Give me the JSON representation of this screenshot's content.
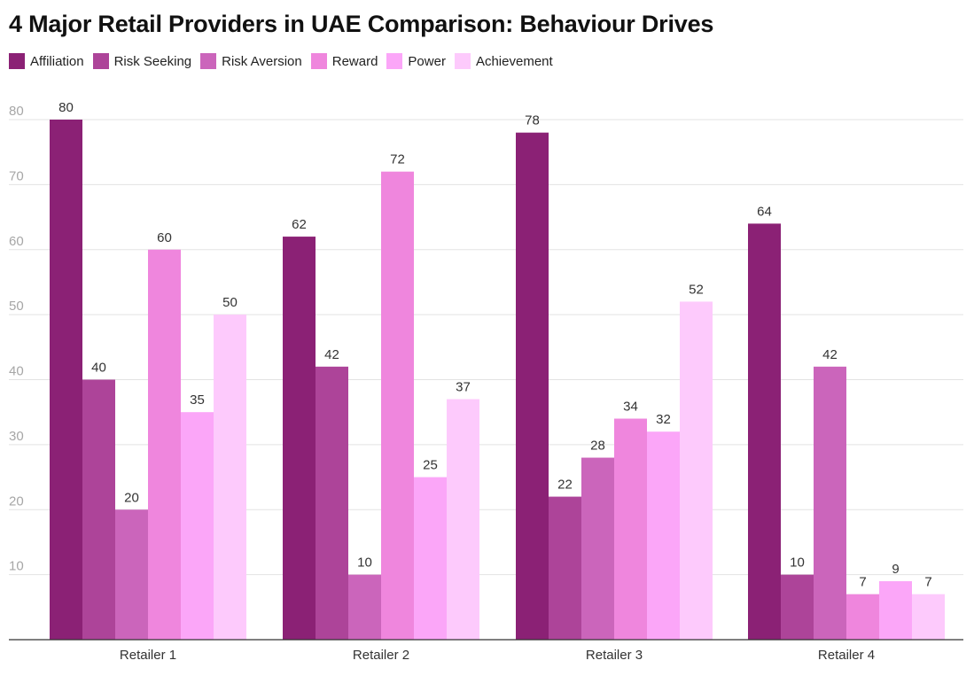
{
  "chart_data": {
    "type": "bar",
    "title": "4 Major Retail Providers in UAE Comparison: Behaviour Drives",
    "categories": [
      "Retailer 1",
      "Retailer 2",
      "Retailer 3",
      "Retailer 4"
    ],
    "series": [
      {
        "name": "Affiliation",
        "color": "#8b2175",
        "values": [
          80,
          62,
          78,
          64
        ]
      },
      {
        "name": "Risk Seeking",
        "color": "#ad4499",
        "values": [
          40,
          42,
          22,
          10
        ]
      },
      {
        "name": "Risk Aversion",
        "color": "#cb65bb",
        "values": [
          20,
          10,
          28,
          42
        ]
      },
      {
        "name": "Reward",
        "color": "#ef86dd",
        "values": [
          60,
          72,
          34,
          7
        ]
      },
      {
        "name": "Power",
        "color": "#fba6f8",
        "values": [
          35,
          25,
          32,
          9
        ]
      },
      {
        "name": "Achievement",
        "color": "#fdcafc",
        "values": [
          50,
          37,
          52,
          7
        ]
      }
    ],
    "yticks": [
      10,
      20,
      30,
      40,
      50,
      60,
      70,
      80
    ],
    "ylim": [
      0,
      80
    ],
    "xlabel": "",
    "ylabel": "",
    "grid": true,
    "legend_position": "top-left"
  }
}
